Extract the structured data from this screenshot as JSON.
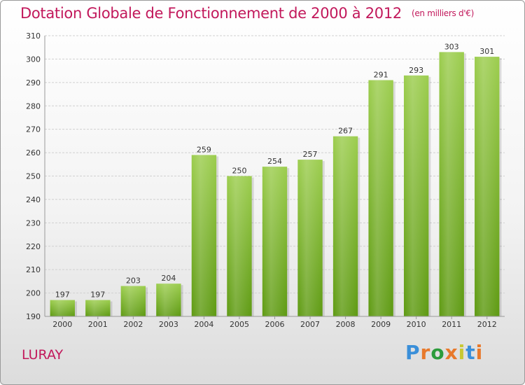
{
  "chart_data": {
    "type": "bar",
    "title": "Dotation Globale de Fonctionnement de 2000 à 2012",
    "subtitle": "(en milliers d'€)",
    "categories": [
      "2000",
      "2001",
      "2002",
      "2003",
      "2004",
      "2005",
      "2006",
      "2007",
      "2008",
      "2009",
      "2010",
      "2011",
      "2012"
    ],
    "values": [
      197,
      197,
      203,
      204,
      259,
      250,
      254,
      257,
      267,
      291,
      293,
      303,
      301
    ],
    "ylim": [
      190,
      310
    ],
    "yticks": [
      190,
      200,
      210,
      220,
      230,
      240,
      250,
      260,
      270,
      280,
      290,
      300,
      310
    ],
    "grid": true,
    "bar_color_top": "#9ccd4e",
    "bar_color_bottom": "#5e9a12"
  },
  "footer": {
    "place": "LURAY",
    "logo_text": "Proxiti",
    "logo_colors": [
      "#3a8fd9",
      "#e8792b",
      "#2c9c3c",
      "#e8792b",
      "#c8c832",
      "#3a8fd9",
      "#e8792b"
    ]
  }
}
